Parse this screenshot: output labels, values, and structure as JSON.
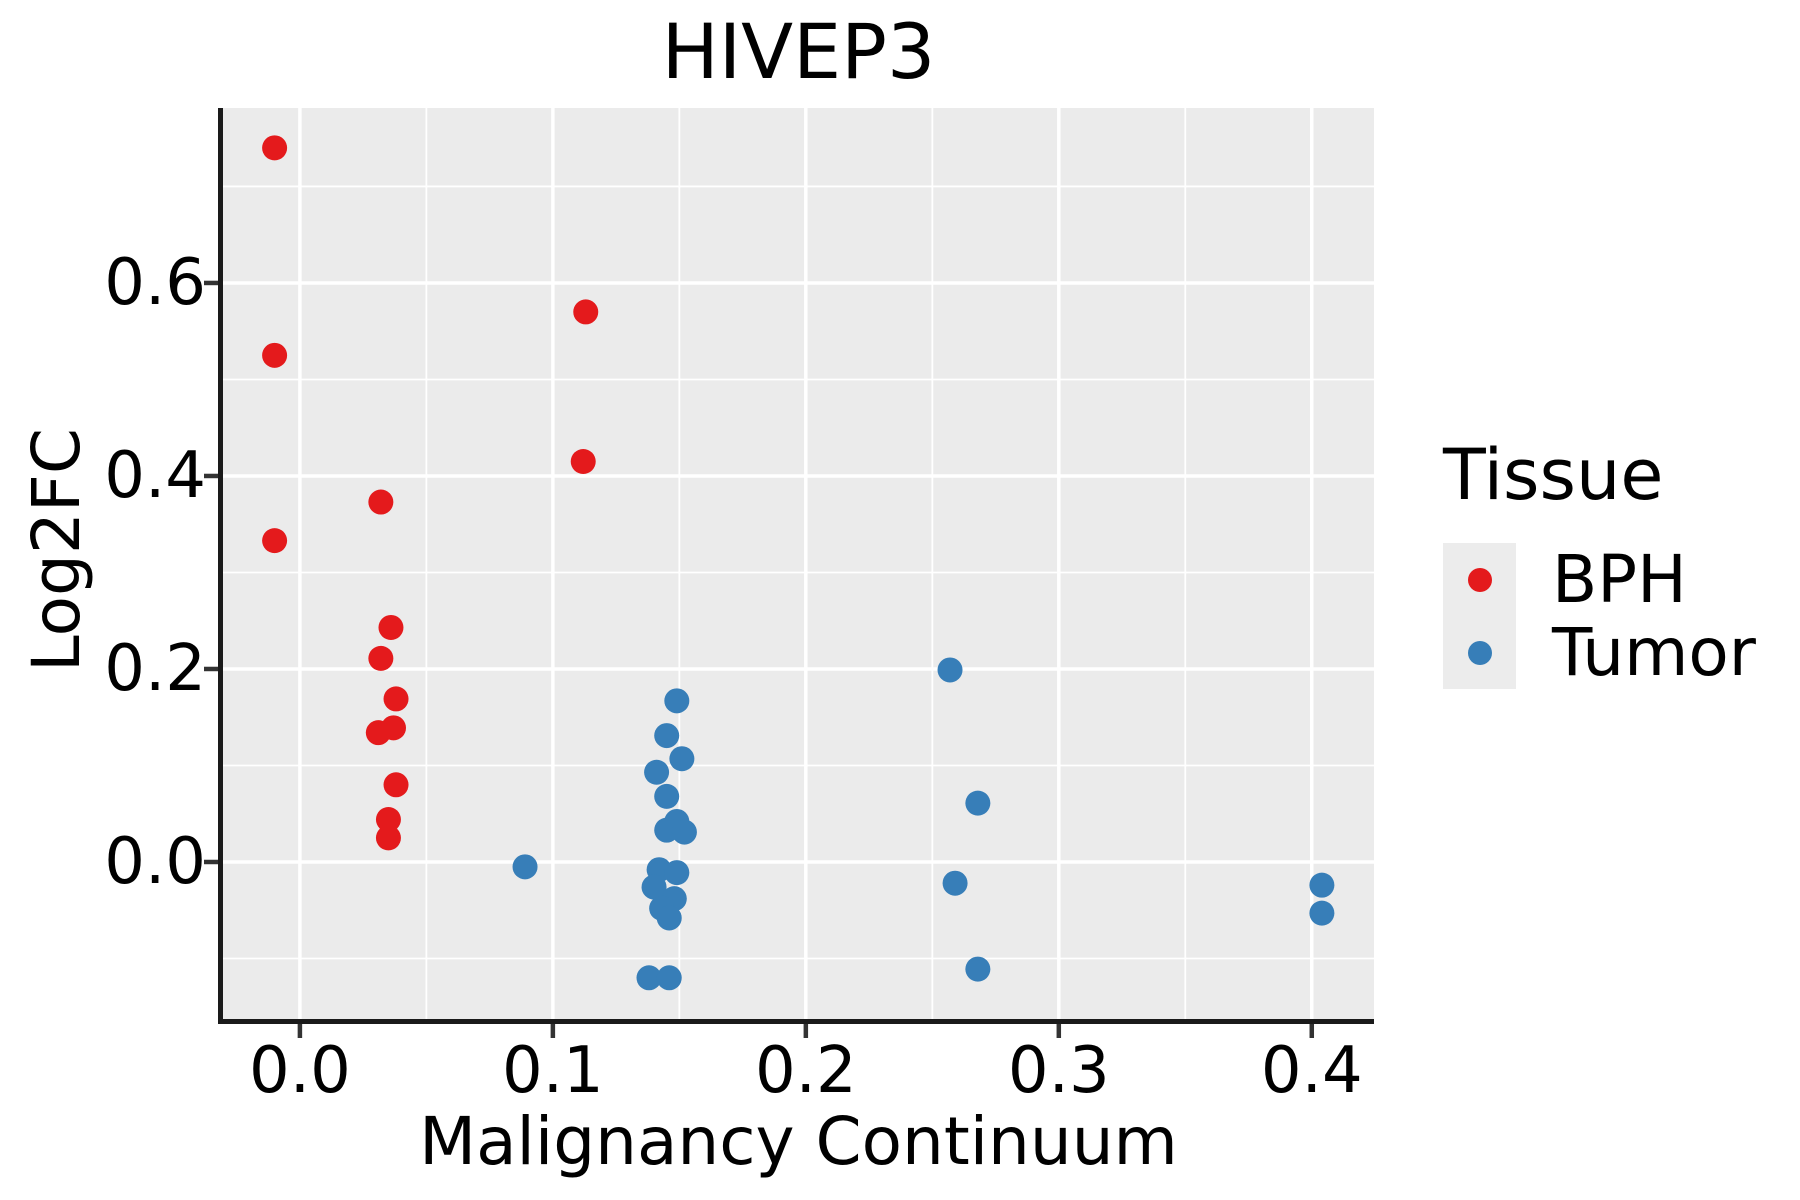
{
  "chart_data": {
    "type": "scatter",
    "title": "HIVEP3",
    "xlabel": "Malignancy Continuum",
    "ylabel": "Log2FC",
    "legend_title": "Tissue",
    "legend_position": "right",
    "grid": true,
    "panel_background": "#EBEBEB",
    "grid_color": "#FFFFFF",
    "spine_color": "#1a1a1a",
    "tick_color": "#333333",
    "xlim": [
      -0.0304,
      0.4246
    ],
    "ylim": [
      -0.1627,
      0.7813
    ],
    "x_ticks": [
      0.0,
      0.1,
      0.2,
      0.3,
      0.4
    ],
    "x_tick_labels": [
      "0.0",
      "0.1",
      "0.2",
      "0.3",
      "0.4"
    ],
    "x_minor_ticks": [
      0.05,
      0.15,
      0.25,
      0.35
    ],
    "y_ticks": [
      0.0,
      0.2,
      0.4,
      0.6
    ],
    "y_tick_labels": [
      "0.0",
      "0.2",
      "0.4",
      "0.6"
    ],
    "y_minor_ticks": [
      -0.1,
      0.1,
      0.3,
      0.5,
      0.7
    ],
    "point_radius_px": 12.5,
    "series": [
      {
        "name": "BPH",
        "color": "#E41A1C",
        "points": [
          [
            -0.01,
            0.74
          ],
          [
            -0.01,
            0.525
          ],
          [
            -0.01,
            0.333
          ],
          [
            0.032,
            0.373
          ],
          [
            0.113,
            0.57
          ],
          [
            0.112,
            0.415
          ],
          [
            0.036,
            0.243
          ],
          [
            0.032,
            0.211
          ],
          [
            0.038,
            0.169
          ],
          [
            0.037,
            0.139
          ],
          [
            0.031,
            0.134
          ],
          [
            0.038,
            0.08
          ],
          [
            0.035,
            0.044
          ],
          [
            0.035,
            0.025
          ]
        ]
      },
      {
        "name": "Tumor",
        "color": "#377EB8",
        "points": [
          [
            0.089,
            -0.005
          ],
          [
            0.149,
            0.167
          ],
          [
            0.145,
            0.131
          ],
          [
            0.151,
            0.107
          ],
          [
            0.141,
            0.093
          ],
          [
            0.145,
            0.068
          ],
          [
            0.149,
            0.042
          ],
          [
            0.145,
            0.033
          ],
          [
            0.152,
            0.031
          ],
          [
            0.142,
            -0.008
          ],
          [
            0.149,
            -0.011
          ],
          [
            0.14,
            -0.026
          ],
          [
            0.148,
            -0.038
          ],
          [
            0.143,
            -0.048
          ],
          [
            0.146,
            -0.058
          ],
          [
            0.138,
            -0.12
          ],
          [
            0.146,
            -0.12
          ],
          [
            0.257,
            0.199
          ],
          [
            0.268,
            0.061
          ],
          [
            0.259,
            -0.022
          ],
          [
            0.268,
            -0.111
          ],
          [
            0.404,
            -0.024
          ],
          [
            0.404,
            -0.053
          ]
        ]
      }
    ]
  }
}
